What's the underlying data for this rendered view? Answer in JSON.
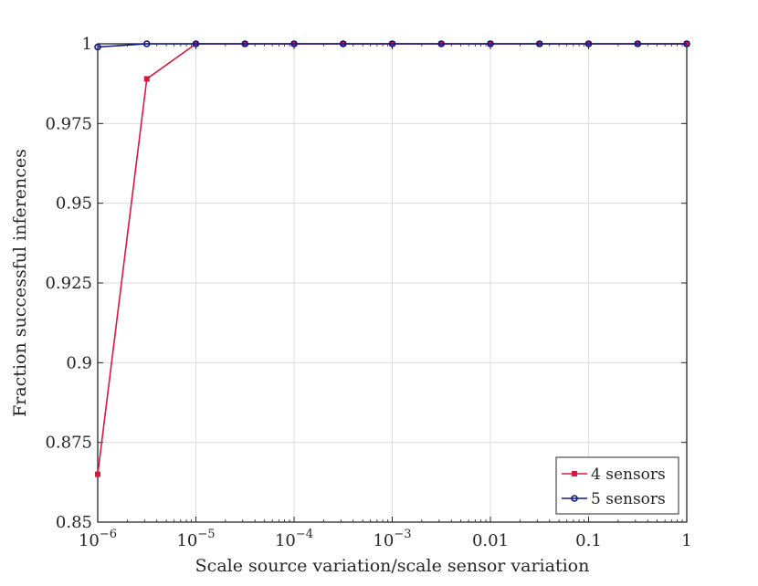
{
  "chart_data": {
    "type": "line",
    "title": "",
    "xlabel": "Scale source variation/scale sensor variation",
    "ylabel": "Fraction successful inferences",
    "xscale": "log",
    "xlim": [
      1e-06,
      1
    ],
    "ylim": [
      0.85,
      1
    ],
    "grid": true,
    "legend_position": "bottom-right",
    "x": [
      1e-06,
      3.162e-06,
      1e-05,
      3.162e-05,
      0.0001,
      0.0003162,
      0.001,
      0.003162,
      0.01,
      0.03162,
      0.1,
      0.3162,
      1
    ],
    "x_ticks": [
      {
        "value": 1e-06,
        "base": "10",
        "exp": "−6"
      },
      {
        "value": 1e-05,
        "base": "10",
        "exp": "−5"
      },
      {
        "value": 0.0001,
        "base": "10",
        "exp": "−4"
      },
      {
        "value": 0.001,
        "base": "10",
        "exp": "−3"
      },
      {
        "value": 0.01,
        "base": "0.01",
        "exp": ""
      },
      {
        "value": 0.1,
        "base": "0.1",
        "exp": ""
      },
      {
        "value": 1,
        "base": "1",
        "exp": ""
      }
    ],
    "y_ticks": [
      {
        "value": 0.85,
        "label": "0.85"
      },
      {
        "value": 0.875,
        "label": "0.875"
      },
      {
        "value": 0.9,
        "label": "0.9"
      },
      {
        "value": 0.925,
        "label": "0.925"
      },
      {
        "value": 0.95,
        "label": "0.95"
      },
      {
        "value": 0.975,
        "label": "0.975"
      },
      {
        "value": 1,
        "label": "1"
      }
    ],
    "series": [
      {
        "name": "4 sensors",
        "color": "#d7193c",
        "marker": "square",
        "values": [
          0.865,
          0.989,
          1,
          1,
          1,
          1,
          1,
          1,
          1,
          1,
          1,
          1,
          1
        ]
      },
      {
        "name": "5 sensors",
        "color": "#0c1a8c",
        "marker": "circle",
        "values": [
          0.999,
          1,
          1,
          1,
          1,
          1,
          1,
          1,
          1,
          1,
          1,
          1,
          1
        ]
      }
    ]
  }
}
